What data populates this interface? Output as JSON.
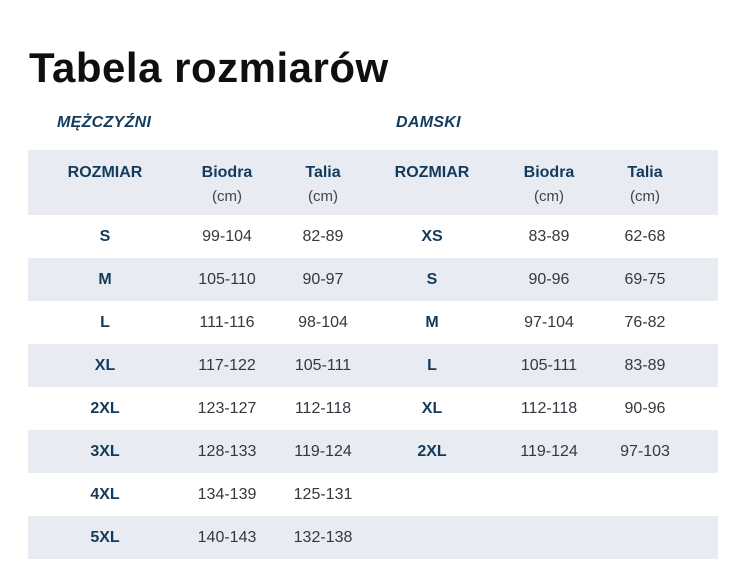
{
  "page_title": "Tabela rozmiarów",
  "colors": {
    "stripe_bg": "#e8ecf2",
    "navy_text": "#143a5c",
    "value_text": "#34383e",
    "title_text": "#0f0f0f",
    "page_bg": "#ffffff"
  },
  "sections": {
    "men_label": "MĘŻCZYŹNI",
    "women_label": "DAMSKI"
  },
  "headers": {
    "size": "ROZMIAR",
    "hips": "Biodra",
    "waist": "Talia",
    "unit": "(cm)"
  },
  "men_rows": [
    {
      "size": "S",
      "hips": "99-104",
      "waist": "82-89"
    },
    {
      "size": "M",
      "hips": "105-110",
      "waist": "90-97"
    },
    {
      "size": "L",
      "hips": "111-116",
      "waist": "98-104"
    },
    {
      "size": "XL",
      "hips": "117-122",
      "waist": "105-111"
    },
    {
      "size": "2XL",
      "hips": "123-127",
      "waist": "112-118"
    },
    {
      "size": "3XL",
      "hips": "128-133",
      "waist": "119-124"
    },
    {
      "size": "4XL",
      "hips": "134-139",
      "waist": "125-131"
    },
    {
      "size": "5XL",
      "hips": "140-143",
      "waist": "132-138"
    }
  ],
  "women_rows": [
    {
      "size": "XS",
      "hips": "83-89",
      "waist": "62-68"
    },
    {
      "size": "S",
      "hips": "90-96",
      "waist": "69-75"
    },
    {
      "size": "M",
      "hips": "97-104",
      "waist": "76-82"
    },
    {
      "size": "L",
      "hips": "105-111",
      "waist": "83-89"
    },
    {
      "size": "XL",
      "hips": "112-118",
      "waist": "90-96"
    },
    {
      "size": "2XL",
      "hips": "119-124",
      "waist": "97-103"
    }
  ]
}
